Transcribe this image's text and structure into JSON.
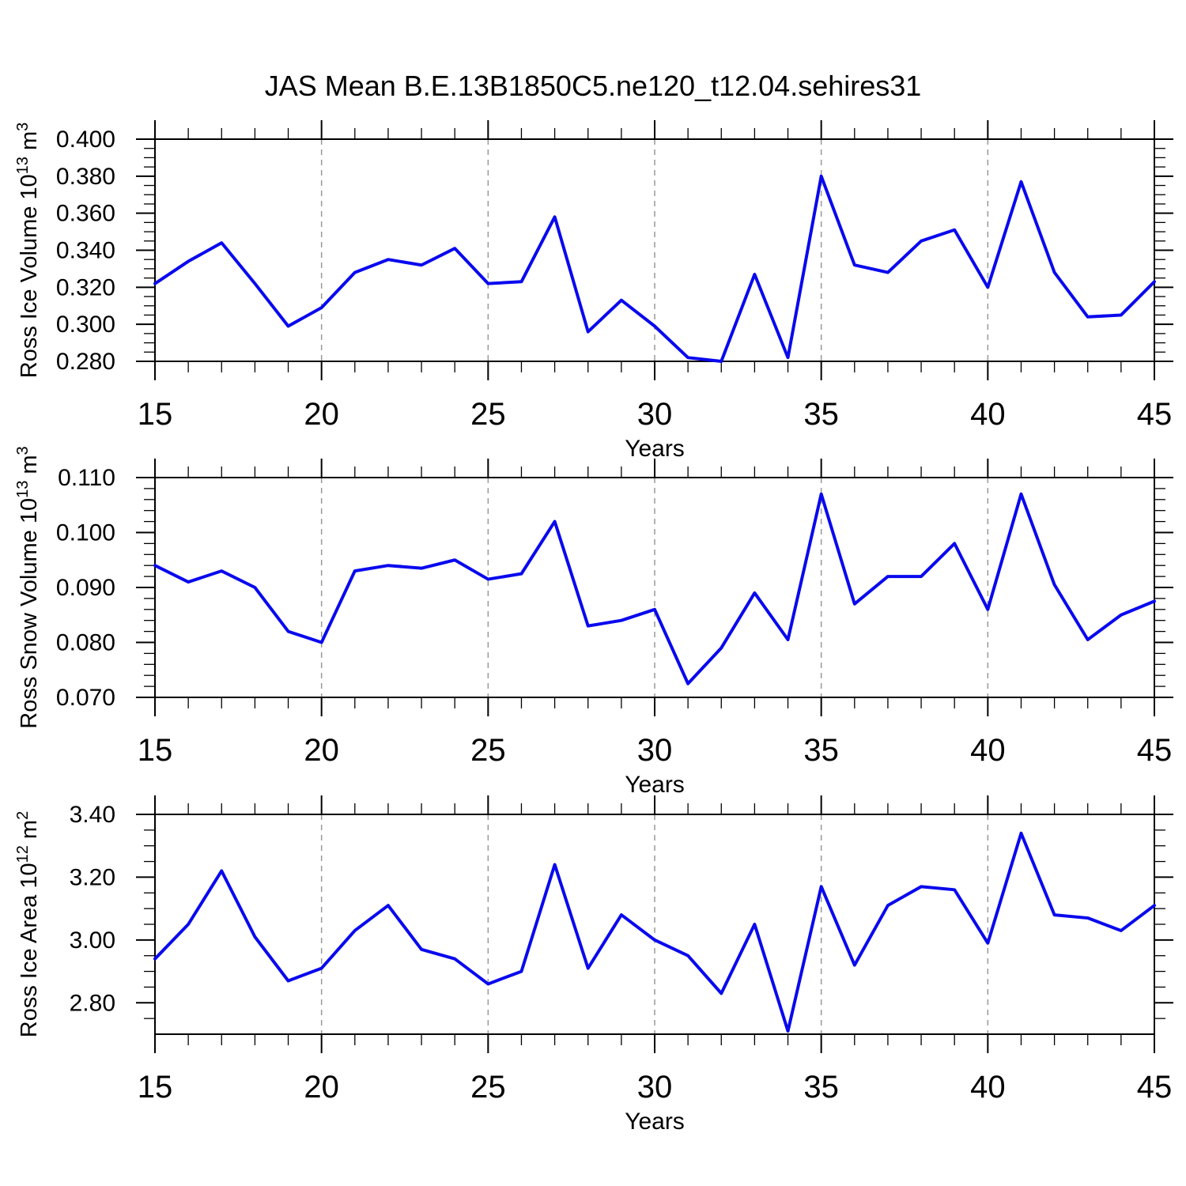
{
  "title": "JAS Mean B.E.13B1850C5.ne120_t12.04.sehires31",
  "colors": {
    "line": "#0909ee",
    "grid": "#999999",
    "axis": "#000000",
    "background": "#ffffff"
  },
  "chart_data": [
    {
      "type": "line",
      "id": "ross-ice-volume",
      "ylabel": "Ross Ice Volume 10^13 m^3",
      "ylabel_parts": [
        [
          "Ross Ice Volume 10",
          0
        ],
        [
          "13",
          1
        ],
        [
          " m",
          0
        ],
        [
          "3",
          1
        ]
      ],
      "xlabel": "Years",
      "xlim": [
        15,
        45
      ],
      "ylim": [
        0.28,
        0.4
      ],
      "xticks": [
        15,
        20,
        25,
        30,
        35,
        40,
        45
      ],
      "xtick_labels": [
        "15",
        "20",
        "25",
        "30",
        "35",
        "40",
        "45"
      ],
      "xminor_step": 1,
      "grid_x": [
        20,
        25,
        30,
        35,
        40
      ],
      "yticks": [
        0.28,
        0.3,
        0.32,
        0.34,
        0.36,
        0.38,
        0.4
      ],
      "ytick_labels": [
        "0.280",
        "0.300",
        "0.320",
        "0.340",
        "0.360",
        "0.380",
        "0.400"
      ],
      "yminor_step": 0.005,
      "x": [
        15,
        16,
        17,
        18,
        19,
        20,
        21,
        22,
        23,
        24,
        25,
        26,
        27,
        28,
        29,
        30,
        31,
        32,
        33,
        34,
        35,
        36,
        37,
        38,
        39,
        40,
        41,
        42,
        43,
        44,
        45
      ],
      "values": [
        0.322,
        0.334,
        0.344,
        0.322,
        0.299,
        0.309,
        0.328,
        0.335,
        0.332,
        0.341,
        0.322,
        0.323,
        0.358,
        0.296,
        0.313,
        0.299,
        0.282,
        0.28,
        0.327,
        0.282,
        0.38,
        0.332,
        0.328,
        0.345,
        0.351,
        0.32,
        0.377,
        0.328,
        0.304,
        0.305,
        0.323
      ]
    },
    {
      "type": "line",
      "id": "ross-snow-volume",
      "ylabel": "Ross Snow Volume 10^13 m^3",
      "ylabel_parts": [
        [
          "Ross Snow Volume 10",
          0
        ],
        [
          "13",
          1
        ],
        [
          " m",
          0
        ],
        [
          "3",
          1
        ]
      ],
      "xlabel": "Years",
      "xlim": [
        15,
        45
      ],
      "ylim": [
        0.07,
        0.11
      ],
      "xticks": [
        15,
        20,
        25,
        30,
        35,
        40,
        45
      ],
      "xtick_labels": [
        "15",
        "20",
        "25",
        "30",
        "35",
        "40",
        "45"
      ],
      "xminor_step": 1,
      "grid_x": [
        20,
        25,
        30,
        35,
        40
      ],
      "yticks": [
        0.07,
        0.08,
        0.09,
        0.1,
        0.11
      ],
      "ytick_labels": [
        "0.070",
        "0.080",
        "0.090",
        "0.100",
        "0.110"
      ],
      "yminor_step": 0.002,
      "x": [
        15,
        16,
        17,
        18,
        19,
        20,
        21,
        22,
        23,
        24,
        25,
        26,
        27,
        28,
        29,
        30,
        31,
        32,
        33,
        34,
        35,
        36,
        37,
        38,
        39,
        40,
        41,
        42,
        43,
        44,
        45
      ],
      "values": [
        0.094,
        0.091,
        0.093,
        0.09,
        0.082,
        0.08,
        0.093,
        0.094,
        0.0935,
        0.095,
        0.0915,
        0.0925,
        0.102,
        0.083,
        0.084,
        0.086,
        0.0725,
        0.079,
        0.089,
        0.0805,
        0.107,
        0.087,
        0.092,
        0.092,
        0.098,
        0.086,
        0.107,
        0.0905,
        0.0805,
        0.085,
        0.0875
      ]
    },
    {
      "type": "line",
      "id": "ross-ice-area",
      "ylabel": "Ross Ice Area 10^12 m^2",
      "ylabel_parts": [
        [
          "Ross Ice Area 10",
          0
        ],
        [
          "12",
          1
        ],
        [
          " m",
          0
        ],
        [
          "2",
          1
        ]
      ],
      "xlabel": "Years",
      "xlim": [
        15,
        45
      ],
      "ylim": [
        2.7,
        3.4
      ],
      "xticks": [
        15,
        20,
        25,
        30,
        35,
        40,
        45
      ],
      "xtick_labels": [
        "15",
        "20",
        "25",
        "30",
        "35",
        "40",
        "45"
      ],
      "xminor_step": 1,
      "grid_x": [
        20,
        25,
        30,
        35,
        40
      ],
      "yticks": [
        2.8,
        3.0,
        3.2,
        3.4
      ],
      "ytick_labels": [
        "2.80",
        "3.00",
        "3.20",
        "3.40"
      ],
      "yminor_step": 0.05,
      "x": [
        15,
        16,
        17,
        18,
        19,
        20,
        21,
        22,
        23,
        24,
        25,
        26,
        27,
        28,
        29,
        30,
        31,
        32,
        33,
        34,
        35,
        36,
        37,
        38,
        39,
        40,
        41,
        42,
        43,
        44,
        45
      ],
      "values": [
        2.94,
        3.05,
        3.22,
        3.01,
        2.87,
        2.91,
        3.03,
        3.11,
        2.97,
        2.94,
        2.86,
        2.9,
        3.24,
        2.91,
        3.08,
        3.0,
        2.95,
        2.83,
        3.05,
        2.71,
        3.17,
        2.92,
        3.11,
        3.17,
        3.16,
        2.99,
        3.34,
        3.08,
        3.07,
        3.03,
        3.11
      ]
    }
  ]
}
